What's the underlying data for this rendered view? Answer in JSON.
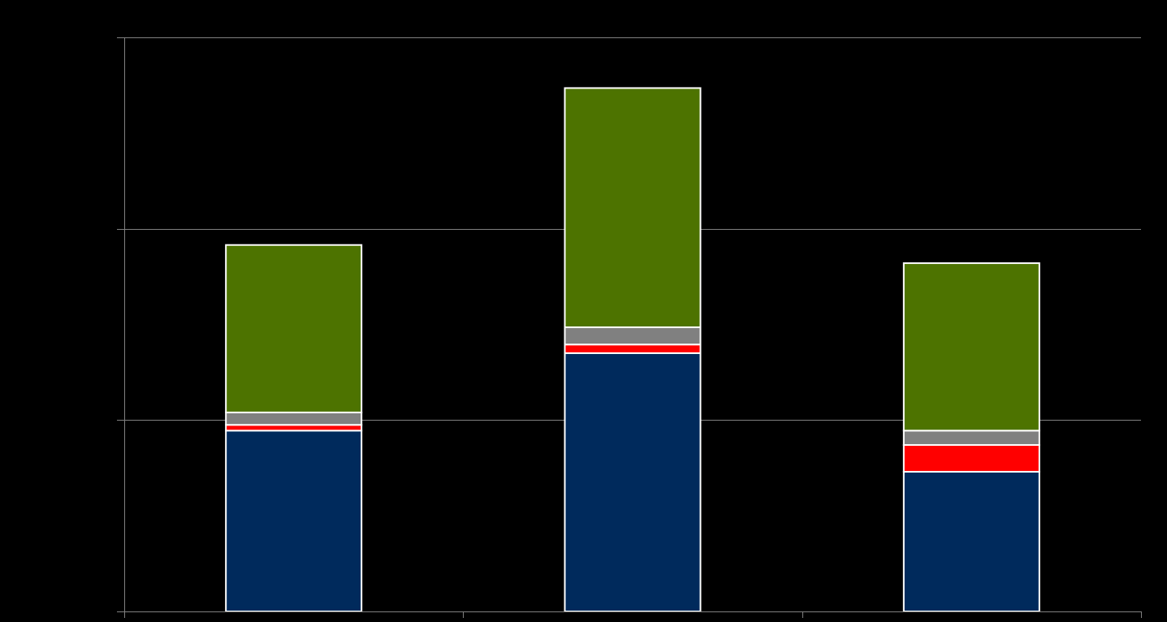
{
  "chart_data": {
    "type": "bar",
    "stacked": true,
    "categories": [
      "",
      "",
      ""
    ],
    "series": [
      {
        "values": [
          1.89,
          2.7,
          1.46
        ],
        "color": "#002a5c"
      },
      {
        "values": [
          0.06,
          0.09,
          0.28
        ],
        "color": "#ff0000"
      },
      {
        "values": [
          0.13,
          0.18,
          0.15
        ],
        "color": "#808080"
      },
      {
        "values": [
          1.75,
          2.5,
          1.75
        ],
        "color": "#4d7300"
      }
    ],
    "ylim": [
      0,
      6
    ],
    "y_gridlines": [
      2,
      4,
      6
    ],
    "grid": true,
    "legend": "none",
    "background": "#000000",
    "axis_color": "#808080",
    "bar_outline_color": "#ffffff"
  }
}
